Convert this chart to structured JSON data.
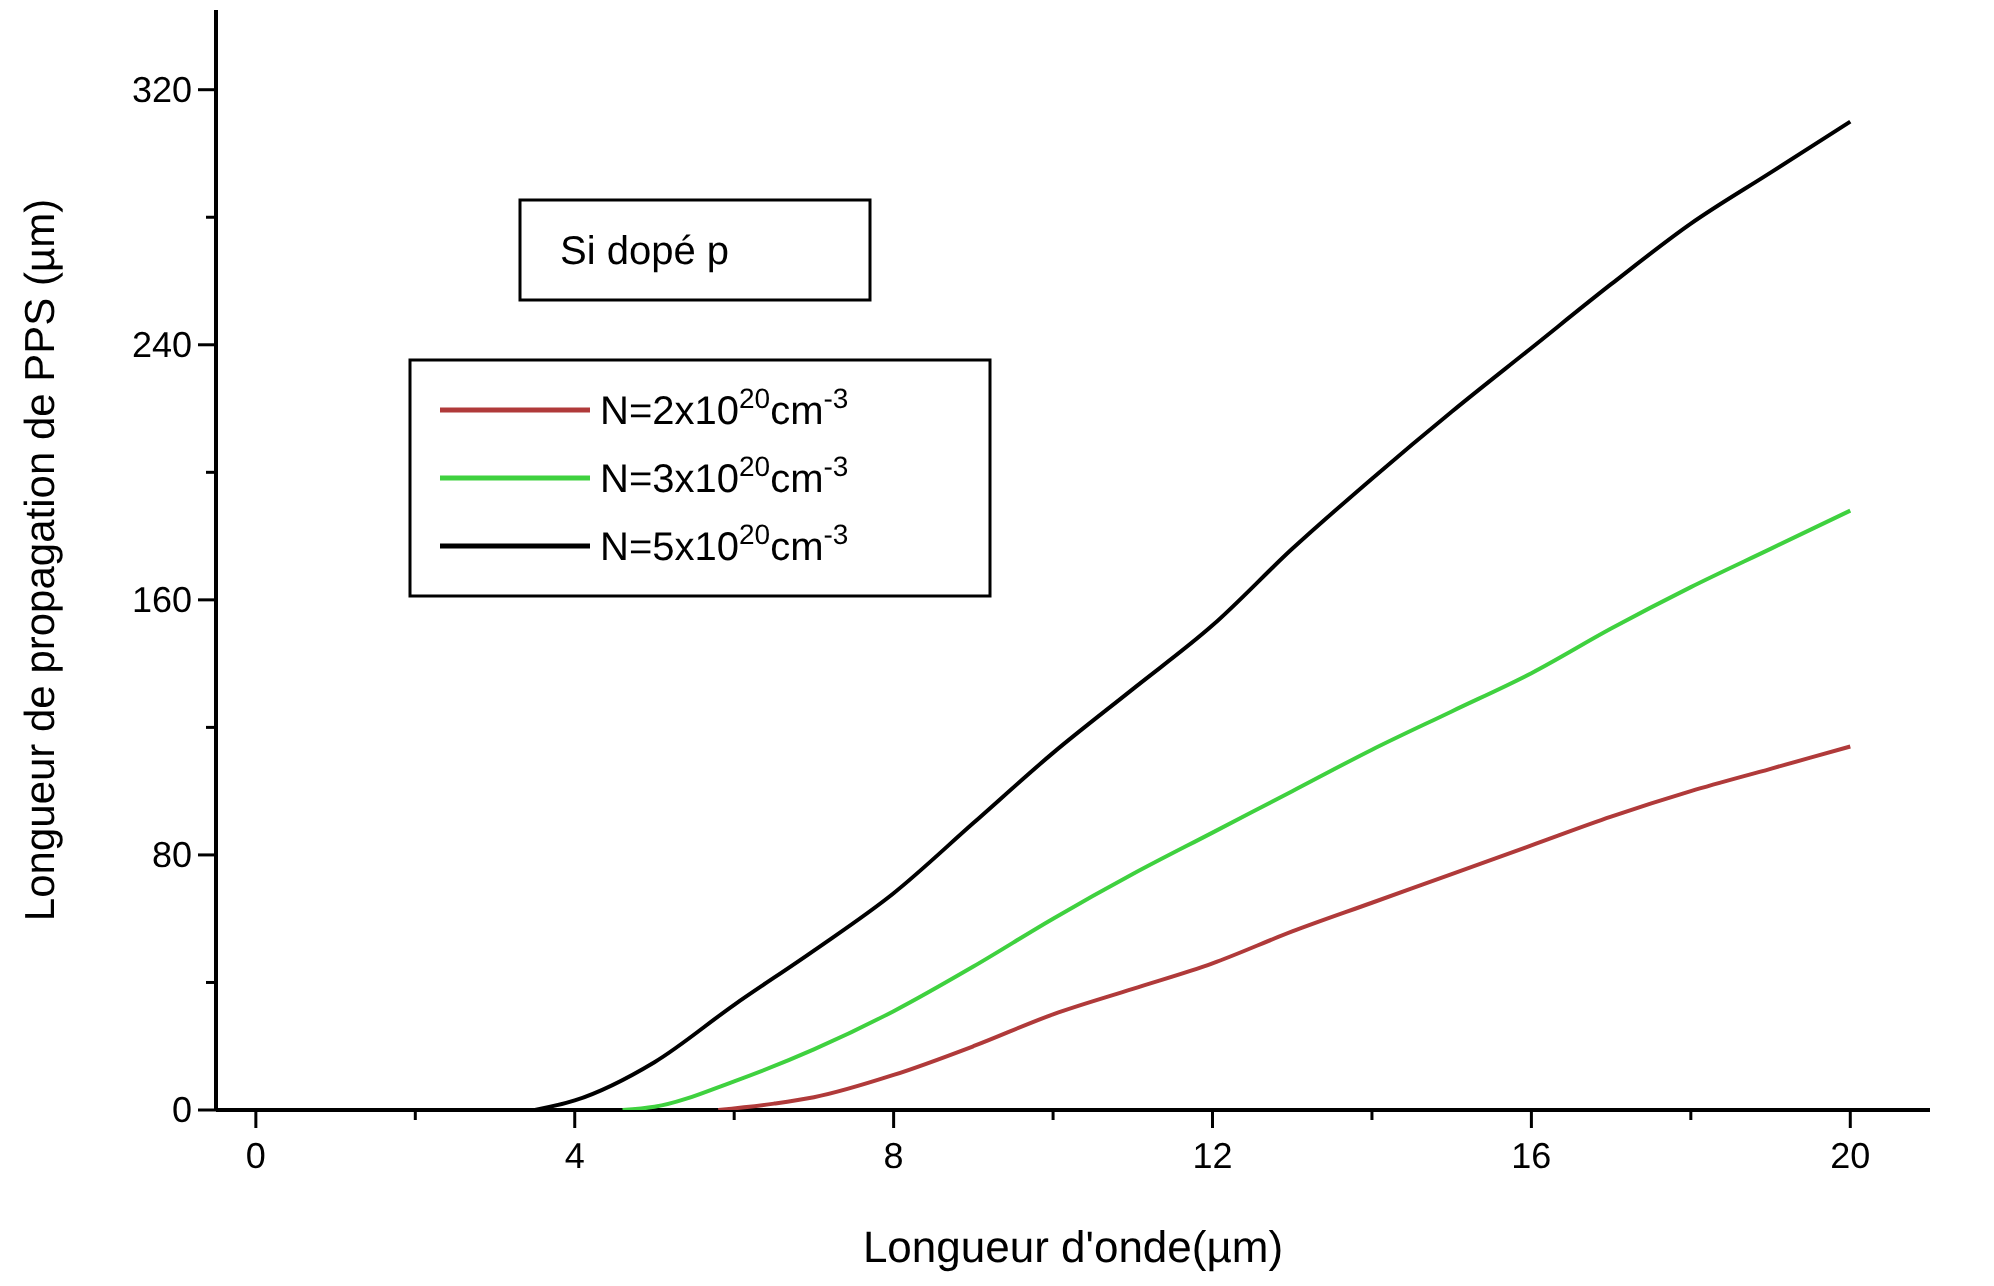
{
  "chart_data": {
    "type": "line",
    "xlabel": "Longueur d'onde(µm)",
    "ylabel": "Longueur de propagation de PPS (µm)",
    "xlim": [
      -0.5,
      21
    ],
    "ylim": [
      0,
      345
    ],
    "xticks": [
      0,
      {
        "value": 2,
        "label": null
      },
      4,
      {
        "value": 6,
        "label": null
      },
      8,
      {
        "value": 10,
        "label": null
      },
      12,
      {
        "value": 14,
        "label": null
      },
      16,
      {
        "value": 18,
        "label": null
      },
      20
    ],
    "yticks": [
      0,
      {
        "value": 40,
        "label": null
      },
      80,
      {
        "value": 120,
        "label": null
      },
      160,
      {
        "value": 200,
        "label": null
      },
      240,
      {
        "value": 280,
        "label": null
      },
      320
    ],
    "grid": false,
    "legend": "top left",
    "line_style": "solid",
    "marker": "none",
    "annotations": [
      "Si dopé p"
    ],
    "series": [
      {
        "name": "N=2x10$^{20}$cm$^{-3}$",
        "color": "#b03a3a",
        "x": [
          5.8,
          6.5,
          7,
          8,
          9,
          10,
          11,
          12,
          13,
          14,
          15,
          16,
          17,
          18,
          19,
          20
        ],
        "values": [
          0,
          2,
          4,
          11,
          20,
          30,
          38,
          46,
          56,
          65,
          74,
          83,
          92,
          100,
          107,
          114
        ]
      },
      {
        "name": "N=3x10$^{20}$cm$^{-3}$",
        "color": "#3fd13f",
        "x": [
          4.6,
          5,
          6,
          7,
          8,
          9,
          10,
          11,
          12,
          13,
          14,
          15,
          16,
          17,
          18,
          19,
          20
        ],
        "values": [
          0,
          1,
          9,
          19,
          31,
          45,
          60,
          74,
          87,
          100,
          113,
          125,
          137,
          151,
          164,
          176,
          188
        ]
      },
      {
        "name": "N=5x10$^{20}$cm$^{-3}$",
        "color": "#000000",
        "x": [
          3.5,
          4,
          5,
          6,
          7,
          8,
          9,
          10,
          11,
          12,
          13,
          14,
          15,
          16,
          17,
          18,
          19,
          20
        ],
        "values": [
          0,
          3,
          15,
          33,
          50,
          68,
          90,
          112,
          132,
          152,
          176,
          198,
          219,
          239,
          259,
          278,
          294,
          310
        ]
      }
    ]
  }
}
